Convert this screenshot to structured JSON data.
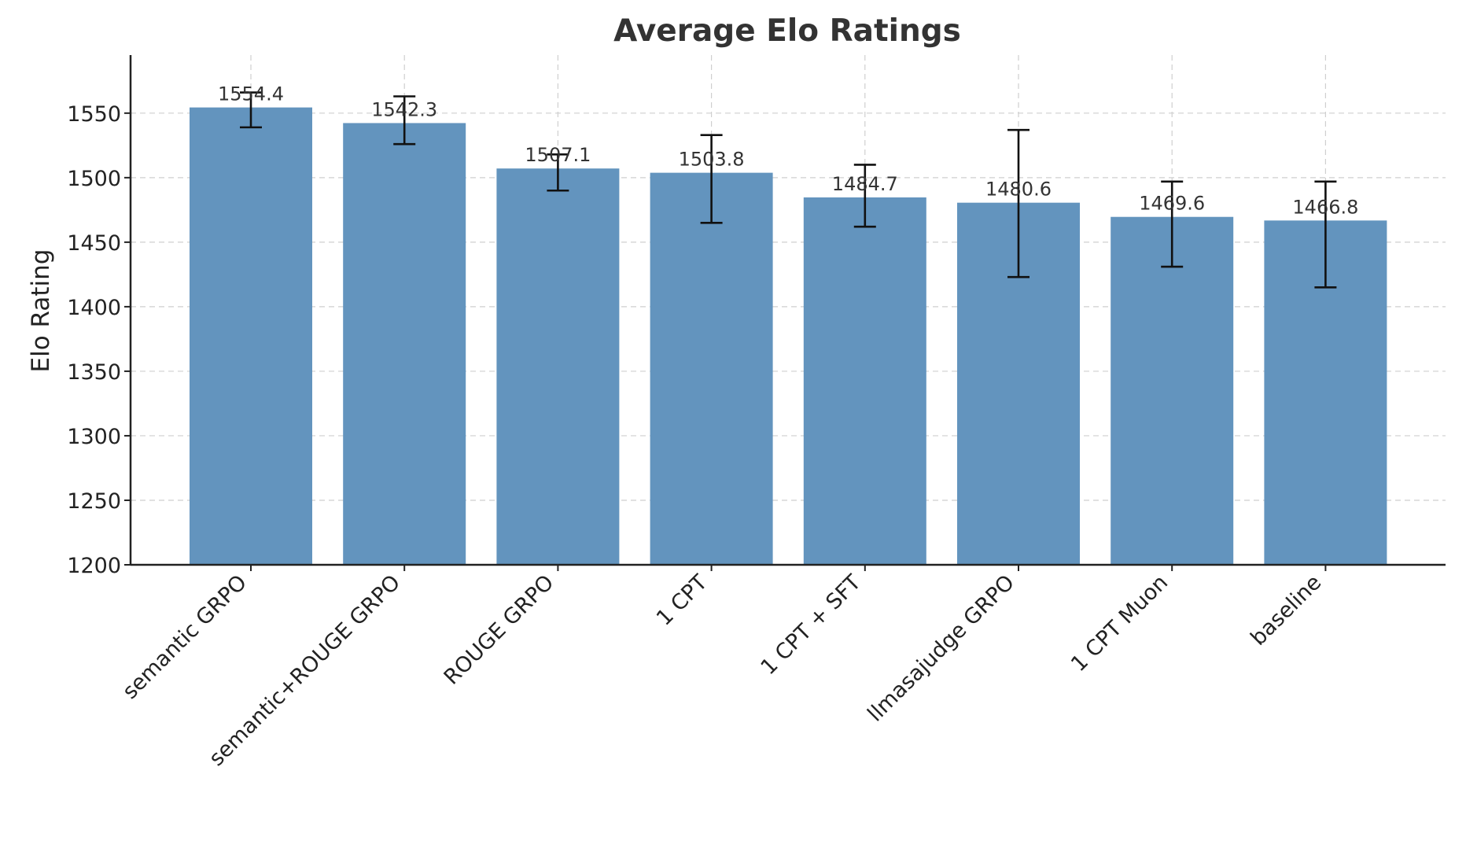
{
  "chart_data": {
    "type": "bar",
    "title": "Average Elo Ratings",
    "xlabel": "",
    "ylabel": "Elo Rating",
    "ylim": [
      1200,
      1595
    ],
    "yticks": [
      1200,
      1250,
      1300,
      1350,
      1400,
      1450,
      1500,
      1550
    ],
    "grid": true,
    "categories": [
      "semantic GRPO",
      "semantic+ROUGE GRPO",
      "ROUGE GRPO",
      "1 CPT",
      "1 CPT + SFT",
      "llmasajudge GRPO",
      "1 CPT Muon",
      "baseline"
    ],
    "values": [
      1554.4,
      1542.3,
      1507.1,
      1503.8,
      1484.7,
      1480.6,
      1469.6,
      1466.8
    ],
    "value_labels": [
      "1554.4",
      "1542.3",
      "1507.1",
      "1503.8",
      "1484.7",
      "1480.6",
      "1469.6",
      "1466.8"
    ],
    "error_low": [
      1539,
      1526,
      1490,
      1465,
      1462,
      1423,
      1431,
      1415
    ],
    "error_high": [
      1566,
      1563,
      1518,
      1533,
      1510,
      1537,
      1497,
      1497
    ],
    "bar_color": "#6394be"
  }
}
